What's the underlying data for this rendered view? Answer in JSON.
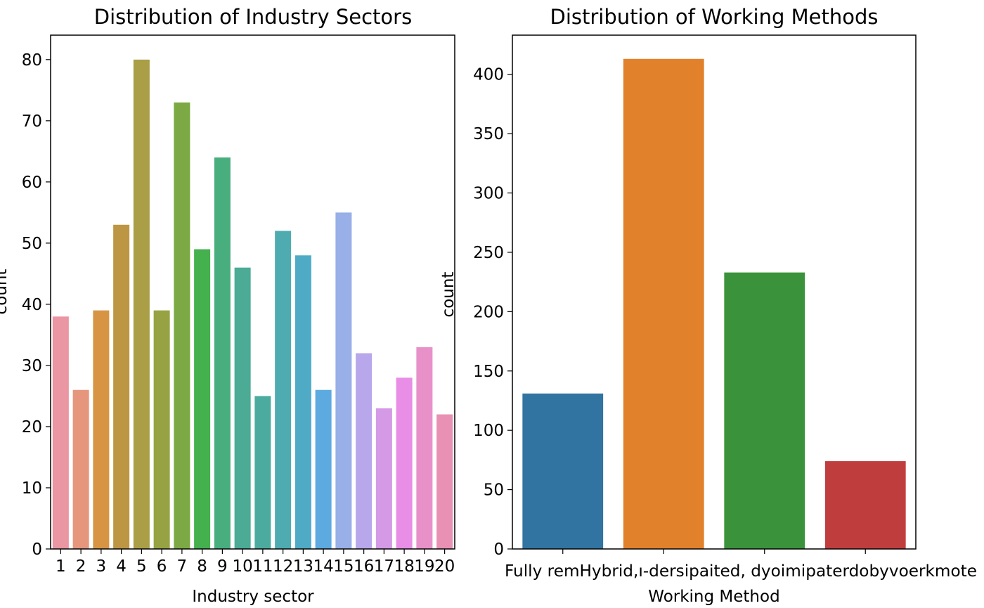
{
  "chart_data": [
    {
      "type": "bar",
      "title": "Distribution of Industry Sectors",
      "xlabel": "Industry sector",
      "ylabel": "count",
      "categories": [
        "1",
        "2",
        "3",
        "4",
        "5",
        "6",
        "7",
        "8",
        "9",
        "10",
        "11",
        "12",
        "13",
        "14",
        "15",
        "16",
        "17",
        "18",
        "19",
        "20"
      ],
      "values": [
        38,
        26,
        39,
        53,
        80,
        39,
        73,
        49,
        64,
        46,
        25,
        52,
        48,
        26,
        55,
        32,
        23,
        28,
        33,
        22
      ],
      "yticks": [
        0,
        10,
        20,
        30,
        40,
        50,
        60,
        70,
        80
      ],
      "ylim": [
        0,
        84
      ],
      "colors": [
        "#ea96a3",
        "#e5967c",
        "#d79544",
        "#bd9644",
        "#aa9e46",
        "#97a342",
        "#7ca943",
        "#44b04e",
        "#48ae7e",
        "#4bab95",
        "#4cab9f",
        "#4eacb0",
        "#4fabc5",
        "#5daae0",
        "#98afe8",
        "#b8a7ea",
        "#d59ae6",
        "#e88ee6",
        "#e891c9",
        "#e891b5"
      ],
      "grid": false,
      "legend": "none"
    },
    {
      "type": "bar",
      "title": "Distribution of Working Methods",
      "xlabel": "Working Method",
      "ylabel": "count",
      "categories": [
        "Fully remote",
        "Hybrid, dominated by in-person work",
        "Fully in-person",
        "Hybrid, dominated by remote"
      ],
      "tick_label_text": "Fully remHybrid,ı-dersipaited, dyoimipaterdobyvoerkmote",
      "values": [
        131,
        413,
        233,
        74
      ],
      "yticks": [
        0,
        50,
        100,
        150,
        200,
        250,
        300,
        350,
        400
      ],
      "ylim": [
        0,
        433
      ],
      "colors": [
        "#3174a1",
        "#e1812c",
        "#3a923a",
        "#c03d3e"
      ],
      "grid": false,
      "legend": "none"
    }
  ]
}
